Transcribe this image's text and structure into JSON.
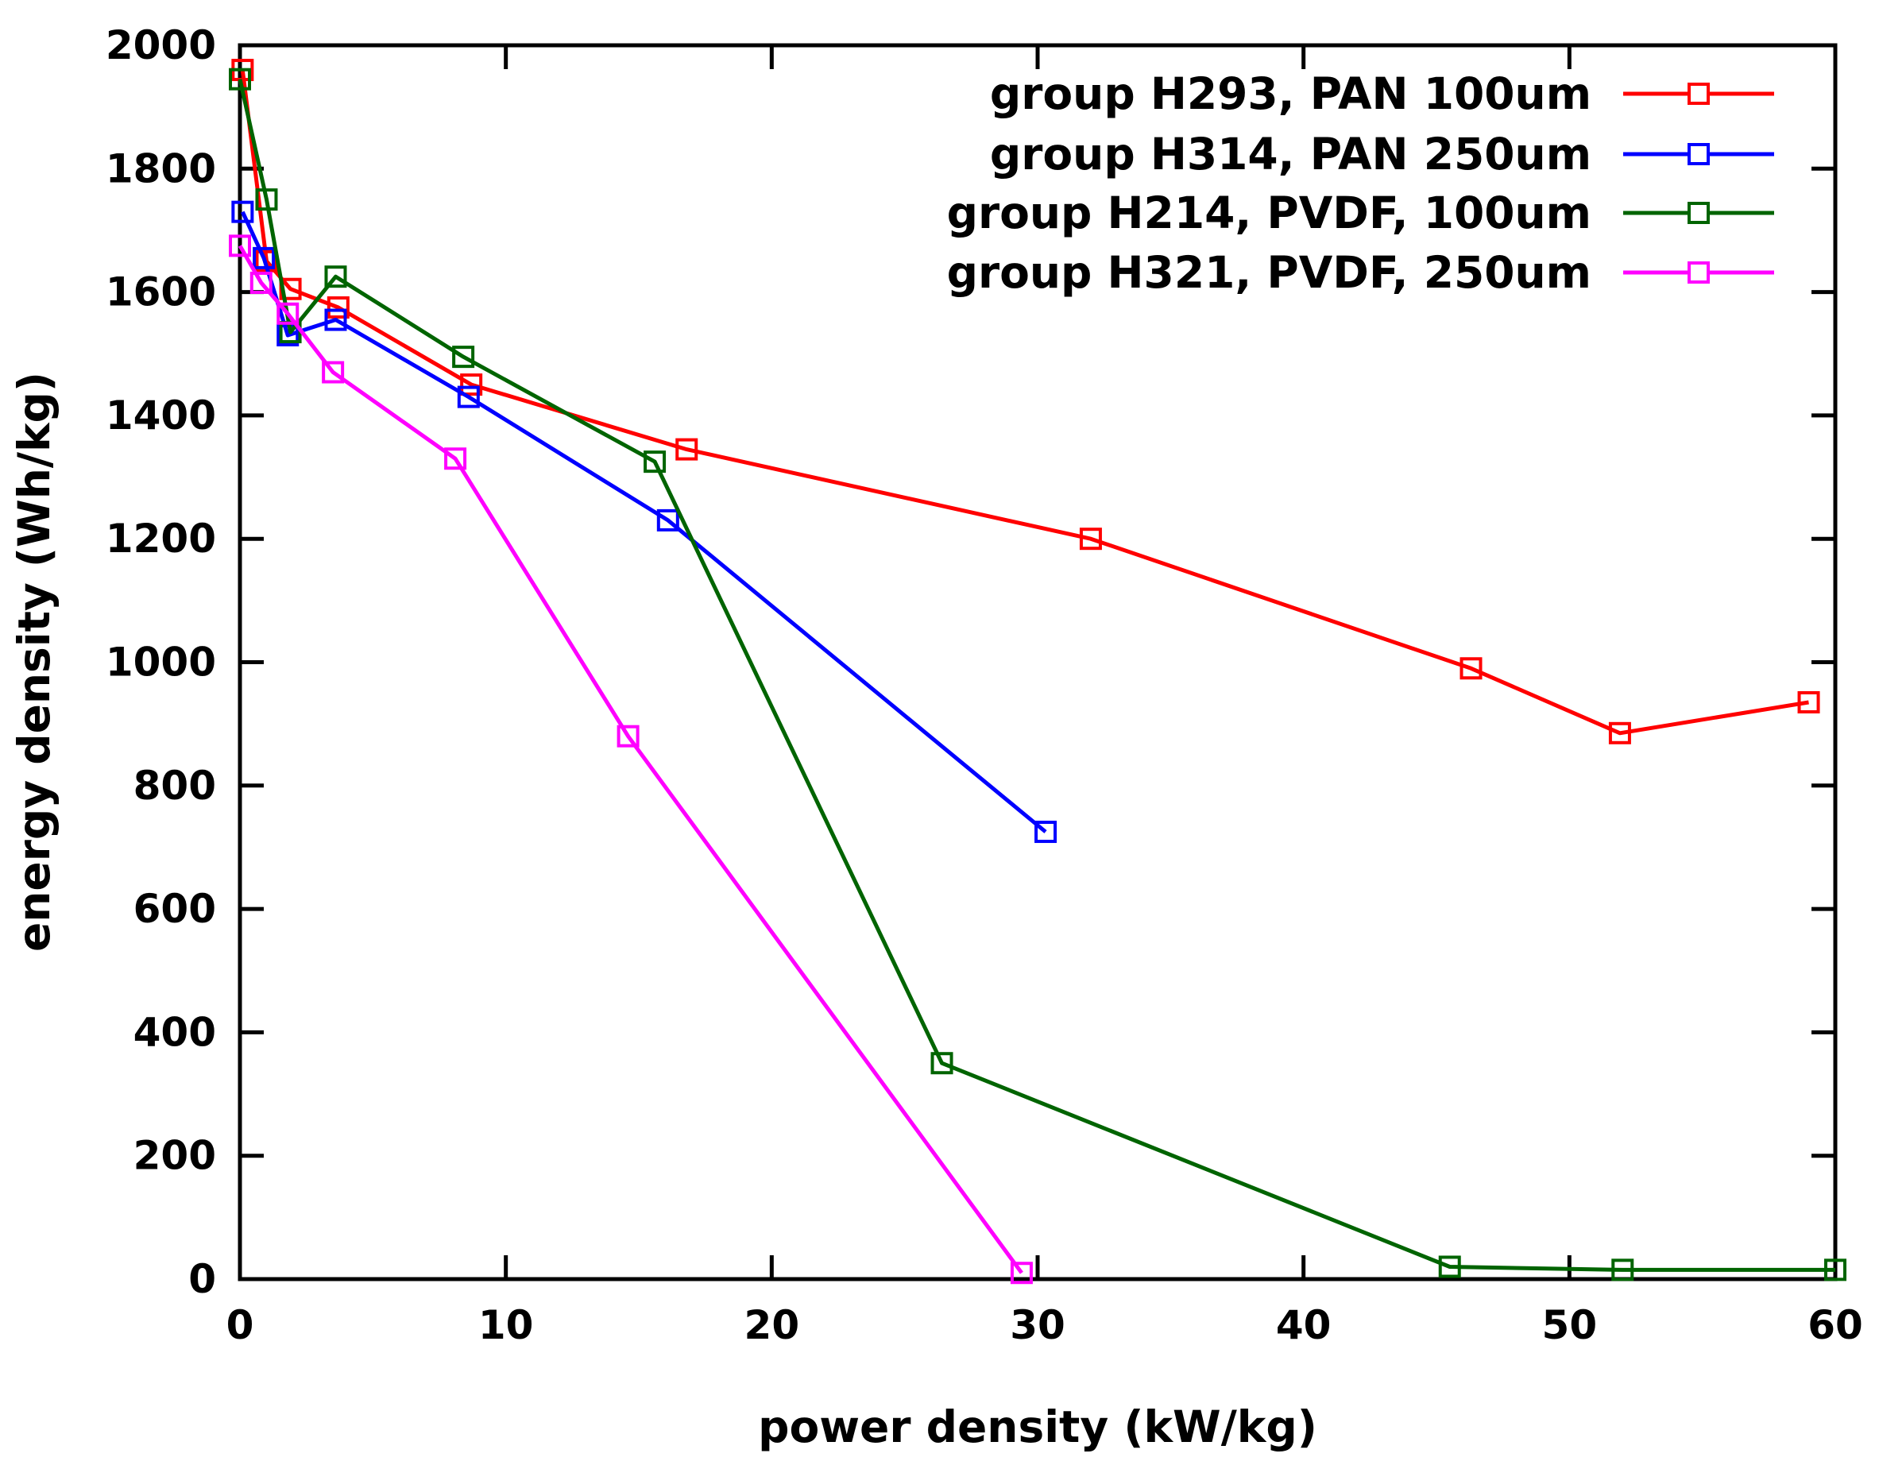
{
  "chart_data": {
    "type": "line",
    "title": "",
    "xlabel": "power density (kW/kg)",
    "ylabel": "energy density (Wh/kg)",
    "xlim": [
      0,
      60
    ],
    "ylim": [
      0,
      2000
    ],
    "xticks": [
      "0",
      "10",
      "20",
      "30",
      "40",
      "50",
      "60"
    ],
    "yticks": [
      "0",
      "200",
      "400",
      "600",
      "800",
      "1000",
      "1200",
      "1400",
      "1600",
      "1800",
      "2000"
    ],
    "grid": false,
    "legend_position": "top-right",
    "marker": "open-square",
    "series": [
      {
        "name": "group H293, PAN 100um",
        "color": "#ff0000",
        "x": [
          0.1,
          1.0,
          1.9,
          3.7,
          8.7,
          16.8,
          32.0,
          46.3,
          51.9,
          59.0
        ],
        "y": [
          1960,
          1650,
          1605,
          1575,
          1450,
          1345,
          1200,
          990,
          885,
          935
        ]
      },
      {
        "name": "group H314, PAN 250um",
        "color": "#0000ff",
        "x": [
          0.1,
          0.9,
          1.8,
          3.6,
          8.6,
          16.1,
          30.3
        ],
        "y": [
          1730,
          1655,
          1530,
          1555,
          1430,
          1230,
          725
        ]
      },
      {
        "name": "group H214, PVDF, 100um",
        "color": "#006400",
        "x": [
          0.0,
          1.0,
          1.9,
          3.6,
          8.4,
          15.6,
          26.4,
          45.5,
          52.0,
          60.0
        ],
        "y": [
          1945,
          1750,
          1535,
          1625,
          1495,
          1325,
          350,
          20,
          15,
          15
        ]
      },
      {
        "name": "group H321, PVDF, 250um",
        "color": "#ff00ff",
        "x": [
          0.0,
          0.8,
          1.8,
          3.5,
          8.1,
          14.6,
          29.4
        ],
        "y": [
          1675,
          1615,
          1565,
          1470,
          1330,
          880,
          10
        ]
      }
    ]
  }
}
